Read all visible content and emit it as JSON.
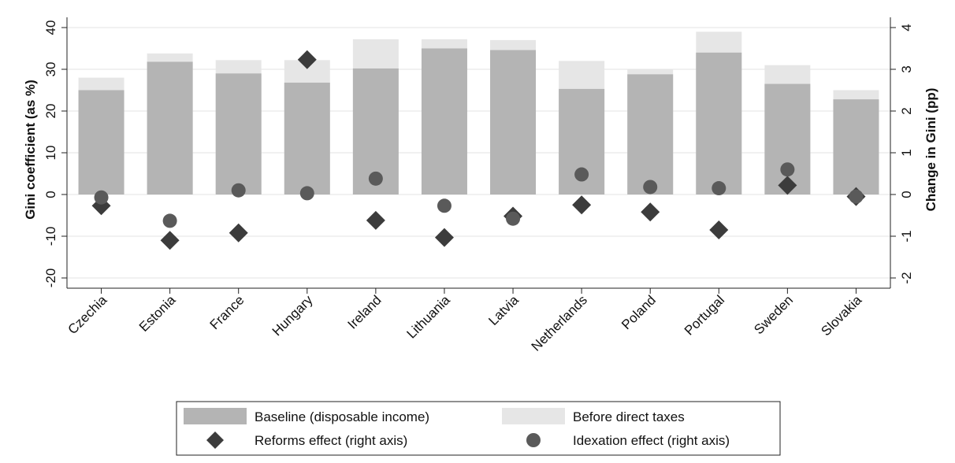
{
  "chart_data": {
    "type": "bar",
    "categories": [
      "Czechia",
      "Estonia",
      "France",
      "Hungary",
      "Ireland",
      "Lithuania",
      "Latvia",
      "Netherlands",
      "Poland",
      "Portugal",
      "Sweden",
      "Slovakia"
    ],
    "series": [
      {
        "name": "Baseline (disposable income)",
        "axis": "left",
        "mark": "bar",
        "color": "#b4b4b4",
        "values": [
          25.0,
          31.8,
          29.0,
          26.8,
          30.2,
          35.0,
          34.6,
          25.3,
          28.8,
          34.0,
          26.5,
          22.8
        ]
      },
      {
        "name": "Before direct taxes",
        "axis": "left",
        "mark": "bar",
        "color": "#e6e6e6",
        "values": [
          28.0,
          33.8,
          32.2,
          32.2,
          37.2,
          37.2,
          37.0,
          32.0,
          30.0,
          39.0,
          31.0,
          25.0
        ]
      },
      {
        "name": "Reforms effect (right axis)",
        "axis": "right",
        "mark": "diamond",
        "color": "#3c3c3c",
        "values": [
          -0.27,
          -1.1,
          -0.92,
          3.23,
          -0.62,
          -1.03,
          -0.52,
          -0.25,
          -0.42,
          -0.85,
          0.22,
          -0.05
        ]
      },
      {
        "name": "Idexation effect (right axis)",
        "axis": "right",
        "mark": "circle",
        "color": "#5a5a5a",
        "values": [
          -0.07,
          -0.63,
          0.1,
          0.03,
          0.38,
          -0.27,
          -0.58,
          0.48,
          0.18,
          0.15,
          0.6,
          -0.05
        ]
      }
    ],
    "ylabel": "Gini coefficient (as %)",
    "y2label": "Change in Gini (pp)",
    "ylim": [
      -22,
      42
    ],
    "yticks": [
      -20,
      -10,
      0,
      10,
      20,
      30,
      40
    ],
    "y2lim": [
      -2.2,
      4.2
    ],
    "y2ticks": [
      -2,
      -1,
      0,
      1,
      2,
      3,
      4
    ],
    "grid": true,
    "legend_placement": "bottom"
  },
  "legend": {
    "baseline": "Baseline (disposable income)",
    "before_tax": "Before direct taxes",
    "reforms": "Reforms effect (right axis)",
    "indexation": "Idexation effect (right axis)"
  }
}
